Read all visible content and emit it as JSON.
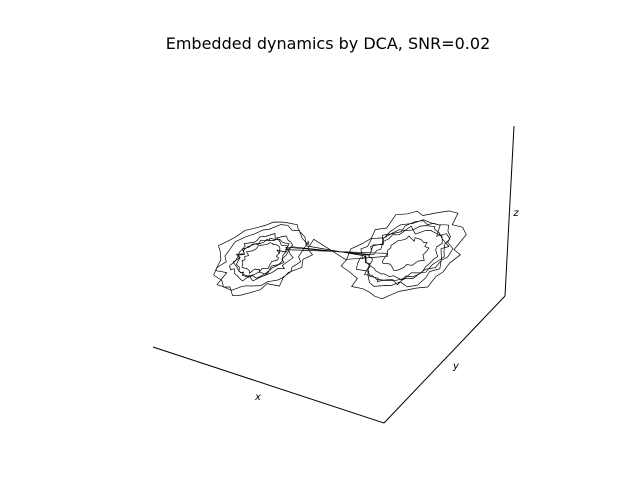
{
  "chart_data": {
    "type": "line",
    "projection": "3d",
    "title": "Embedded dynamics by DCA, SNR=0.02",
    "xlabel": "x",
    "ylabel": "y",
    "zlabel": "z",
    "grid": false,
    "ticks_visible": false,
    "series": [
      {
        "color": "#000000",
        "style": "noisy two-lobed attractor trajectory",
        "lobes": [
          {
            "side": "left",
            "center": [
              -0.45,
              0.0,
              0.55
            ],
            "radius_min": 0.12,
            "radius_max": 0.36,
            "loops": 6
          },
          {
            "side": "right",
            "center": [
              0.45,
              0.25,
              0.6
            ],
            "radius_min": 0.14,
            "radius_max": 0.38,
            "loops": 5
          }
        ]
      }
    ]
  }
}
